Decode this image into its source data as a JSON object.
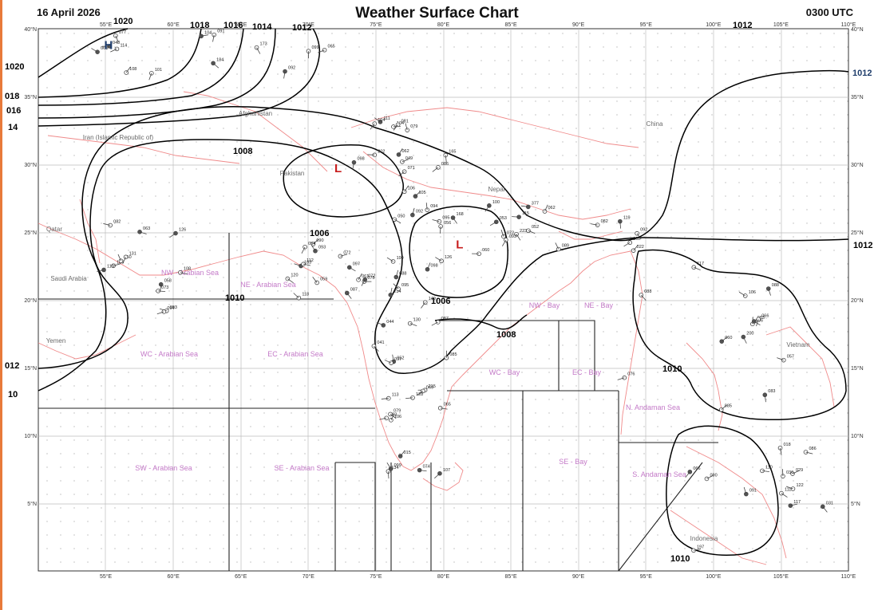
{
  "header": {
    "date": "16 April 2026",
    "title": "Weather Surface Chart",
    "time": "0300 UTC"
  },
  "map": {
    "lon_ticks": [
      "55°E",
      "60°E",
      "65°E",
      "70°E",
      "75°E",
      "80°E",
      "85°E",
      "90°E",
      "95°E",
      "100°E",
      "105°E",
      "110°E"
    ],
    "lat_ticks": [
      "40°N",
      "35°N",
      "30°N",
      "25°N",
      "20°N",
      "15°N",
      "10°N",
      "5°N"
    ],
    "pressure_centers": [
      {
        "label": "H",
        "kind": "high",
        "lon": 55.2,
        "lat": 38.5
      },
      {
        "label": "L",
        "kind": "low",
        "lon": 72.2,
        "lat": 29.4
      },
      {
        "label": "L",
        "kind": "low",
        "lon": 81.2,
        "lat": 23.8
      }
    ],
    "isobar_labels": [
      "1020",
      "1018",
      "1016",
      "1014",
      "1012",
      "1012",
      "1012",
      "1012",
      "1020",
      "018",
      "016",
      "14",
      "012",
      "10",
      "1008",
      "1006",
      "1006",
      "1008",
      "1010",
      "1010",
      "1010"
    ],
    "country_labels": [
      "Afghanistan",
      "Iran (Islamic Republic of)",
      "Pakistan",
      "Qatar",
      "Saudi Arabia",
      "Yemen",
      "Nepal",
      "China",
      "Indonesia",
      "Vietnam"
    ],
    "sea_areas": [
      "NW - Arabian Sea",
      "NE - Arabian Sea",
      "WC - Arabian Sea",
      "EC - Arabian Sea",
      "SW - Arabian Sea",
      "SE - Arabian Sea",
      "NW - Bay",
      "NE - Bay",
      "WC - Bay",
      "EC - Bay",
      "SE - Bay",
      "N. Andaman Sea",
      "S. Andaman Sea"
    ],
    "station_values": [
      "184",
      "202",
      "199",
      "234",
      "215",
      "223",
      "200",
      "197",
      "185",
      "183",
      "173",
      "165",
      "168",
      "149",
      "134",
      "119",
      "096",
      "018",
      "063",
      "059",
      "065",
      "062",
      "056",
      "041",
      "015",
      "022",
      "057",
      "066",
      "050",
      "072",
      "063",
      "104",
      "126",
      "088",
      "065",
      "072",
      "083",
      "086",
      "082",
      "087",
      "091",
      "081",
      "092",
      "075",
      "069",
      "053",
      "076",
      "029",
      "058",
      "090",
      "077",
      "111",
      "095",
      "087",
      "099",
      "089",
      "085",
      "091",
      "093",
      "061",
      "104",
      "071",
      "060",
      "052",
      "083",
      "092",
      "088",
      "110",
      "108",
      "093",
      "101",
      "086",
      "100",
      "097",
      "113",
      "115",
      "117",
      "122",
      "126",
      "112",
      "108",
      "098",
      "094",
      "095",
      "107",
      "102",
      "088",
      "117",
      "131",
      "118",
      "092",
      "079",
      "093",
      "044",
      "106",
      "082",
      "083",
      "090",
      "094",
      "097",
      "099",
      "104",
      "098",
      "130",
      "128",
      "377",
      "106",
      "111",
      "115",
      "120",
      "114",
      "105",
      "106",
      "085",
      "074",
      "052",
      "066",
      "031",
      "073",
      "054",
      "048",
      "049",
      "050",
      "072",
      "079",
      "062",
      "060",
      "036"
    ]
  }
}
